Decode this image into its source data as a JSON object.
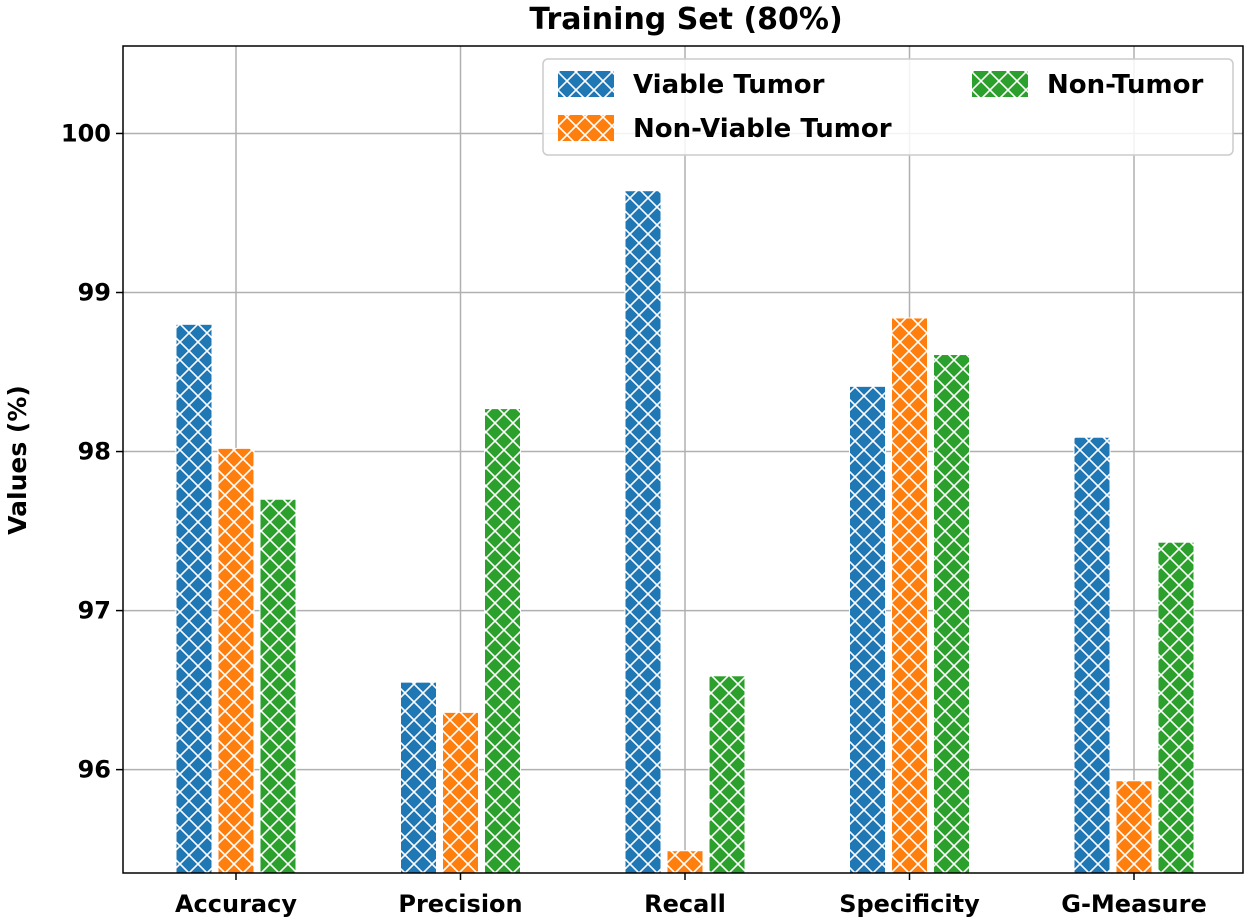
{
  "chart_data": {
    "type": "bar",
    "title": "Training Set (80%)",
    "xlabel": "",
    "ylabel": "Values (%)",
    "ylim": [
      95.35,
      100.55
    ],
    "yticks": [
      96,
      97,
      98,
      99,
      100
    ],
    "grid": true,
    "legend_position": "top-right",
    "hatch": "crosshatch",
    "categories": [
      "Accuracy",
      "Precision",
      "Recall",
      "Specificity",
      "G-Measure"
    ],
    "series": [
      {
        "name": "Viable Tumor",
        "color": "#1f77b4",
        "values": [
          98.8,
          96.55,
          99.64,
          98.41,
          98.09
        ]
      },
      {
        "name": "Non-Viable Tumor",
        "color": "#ff7f0e",
        "values": [
          98.02,
          96.36,
          95.49,
          98.84,
          95.93
        ]
      },
      {
        "name": "Non-Tumor",
        "color": "#2ca02c",
        "values": [
          97.7,
          98.27,
          96.59,
          98.61,
          97.43
        ]
      }
    ]
  }
}
